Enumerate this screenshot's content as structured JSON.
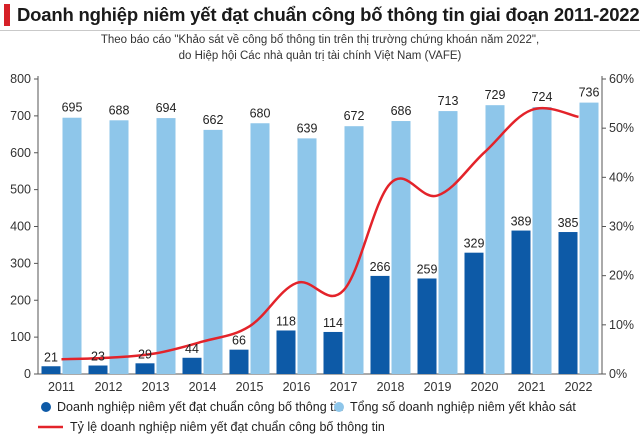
{
  "header": {
    "title": "Doanh nghiệp niêm yết đạt chuẩn công bố thông tin giai đoạn 2011-2022",
    "subtitle_line1": "Theo báo cáo \"Khảo sát về công bố thông tin trên thị trường chứng khoán năm 2022\",",
    "subtitle_line2": "do Hiệp hội Các nhà quản trị tài chính Việt Nam (VAFE)"
  },
  "colors": {
    "title_accent": "#d62027",
    "series_standard": "#0d5aa7",
    "series_total": "#8ec6ea",
    "series_ratio": "#e3232a",
    "axis": "#555555",
    "grid": "#d9d9d9"
  },
  "chart_data": {
    "type": "bar",
    "categories": [
      "2011",
      "2012",
      "2013",
      "2014",
      "2015",
      "2016",
      "2017",
      "2018",
      "2019",
      "2020",
      "2021",
      "2022"
    ],
    "series": [
      {
        "name": "Tổng số doanh nghiệp niêm yết khảo sát",
        "type": "bar",
        "axis": "left",
        "values": [
          695,
          688,
          694,
          662,
          680,
          639,
          672,
          686,
          713,
          729,
          724,
          736
        ]
      },
      {
        "name": "Doanh nghiệp niêm yết đạt chuẩn công bố thông tin",
        "type": "bar",
        "axis": "left",
        "values": [
          21,
          23,
          29,
          44,
          66,
          118,
          114,
          266,
          259,
          329,
          389,
          385
        ]
      },
      {
        "name": "Tỷ lệ doanh nghiệp niêm yết đạt chuẩn công bố thông tin",
        "type": "line",
        "axis": "right",
        "values": [
          3.0,
          3.3,
          4.2,
          6.6,
          9.7,
          18.5,
          17.0,
          38.8,
          36.3,
          45.1,
          53.7,
          52.3
        ]
      }
    ],
    "y_left": {
      "lim": [
        0,
        800
      ],
      "ticks": [
        "0",
        "100",
        "200",
        "300",
        "400",
        "500",
        "600",
        "700",
        "800"
      ]
    },
    "y_right": {
      "lim": [
        0,
        60
      ],
      "ticks": [
        "0%",
        "10%",
        "20%",
        "30%",
        "40%",
        "50%",
        "60%"
      ]
    },
    "grid": false,
    "legend_position": "bottom"
  }
}
